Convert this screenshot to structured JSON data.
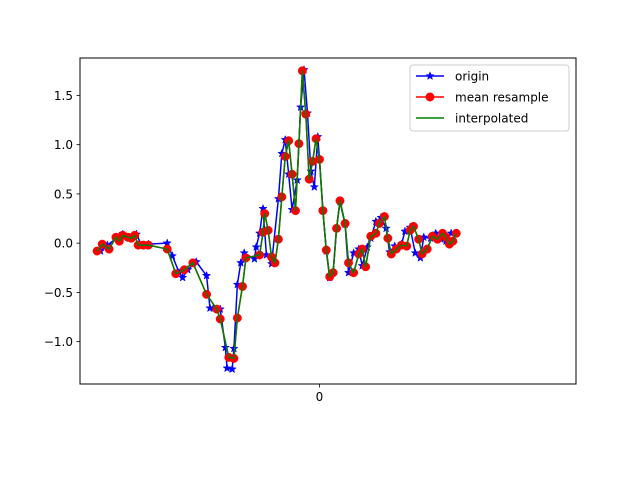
{
  "chart_data": {
    "type": "line",
    "title": "",
    "xlabel": "",
    "ylabel": "",
    "x_ticks": [
      {
        "value": 0,
        "label": "0"
      }
    ],
    "y_ticks": [
      {
        "value": 1.5,
        "label": "1.5"
      },
      {
        "value": 1.0,
        "label": "1.0"
      },
      {
        "value": 0.5,
        "label": "0.5"
      },
      {
        "value": 0.0,
        "label": "0.0"
      },
      {
        "value": -0.5,
        "label": "−0.5"
      },
      {
        "value": -1.0,
        "label": "−1.0"
      }
    ],
    "xlim": [
      -140,
      150
    ],
    "ylim": [
      -1.43,
      1.88
    ],
    "grid": false,
    "legend_position": "top-right",
    "series": [
      {
        "name": "origin",
        "color": "#0000ff",
        "marker": "star",
        "line": true,
        "points": [
          [
            -128,
            -0.08
          ],
          [
            -124,
            -0.02
          ],
          [
            -117,
            0.07
          ],
          [
            -115,
            0.09
          ],
          [
            -111,
            0.05
          ],
          [
            -107,
            0.09
          ],
          [
            -104,
            -0.02
          ],
          [
            -100,
            -0.01
          ],
          [
            -89,
            0.0
          ],
          [
            -86,
            -0.13
          ],
          [
            -82,
            -0.3
          ],
          [
            -80,
            -0.35
          ],
          [
            -77,
            -0.27
          ],
          [
            -72,
            -0.19
          ],
          [
            -66,
            -0.33
          ],
          [
            -64,
            -0.66
          ],
          [
            -62,
            -0.66
          ],
          [
            -58,
            -0.67
          ],
          [
            -55,
            -1.06
          ],
          [
            -54,
            -1.27
          ],
          [
            -51,
            -1.28
          ],
          [
            -50,
            -1.07
          ],
          [
            -48,
            -0.42
          ],
          [
            -46,
            -0.2
          ],
          [
            -44,
            -0.1
          ],
          [
            -38,
            -0.16
          ],
          [
            -37,
            -0.04
          ],
          [
            -35,
            0.1
          ],
          [
            -33,
            0.35
          ],
          [
            -31,
            -0.12
          ],
          [
            -28,
            -0.21
          ],
          [
            -24,
            0.45
          ],
          [
            -22,
            0.91
          ],
          [
            -20,
            1.05
          ],
          [
            -18,
            0.7
          ],
          [
            -16,
            0.34
          ],
          [
            -13,
            0.64
          ],
          [
            -11,
            1.38
          ],
          [
            -9,
            1.76
          ],
          [
            -7,
            1.32
          ],
          [
            -5,
            0.73
          ],
          [
            -3,
            0.57
          ],
          [
            -1,
            1.08
          ],
          [
            0,
            0.86
          ],
          [
            2,
            0.34
          ],
          [
            4,
            -0.08
          ],
          [
            6,
            -0.35
          ],
          [
            8,
            -0.3
          ],
          [
            10,
            0.15
          ],
          [
            12,
            0.42
          ],
          [
            15,
            0.19
          ],
          [
            17,
            -0.3
          ],
          [
            20,
            -0.1
          ],
          [
            23,
            -0.06
          ],
          [
            25,
            -0.23
          ],
          [
            28,
            -0.04
          ],
          [
            30,
            0.05
          ],
          [
            33,
            0.22
          ],
          [
            36,
            0.26
          ],
          [
            39,
            0.15
          ],
          [
            41,
            -0.09
          ],
          [
            44,
            -0.03
          ],
          [
            48,
            -0.01
          ],
          [
            50,
            0.12
          ],
          [
            53,
            0.16
          ],
          [
            56,
            -0.1
          ],
          [
            59,
            -0.15
          ],
          [
            61,
            0.06
          ],
          [
            65,
            0.05
          ],
          [
            68,
            0.1
          ],
          [
            71,
            0.04
          ],
          [
            74,
            0.02
          ],
          [
            77,
            0.1
          ],
          [
            80,
            0.1
          ]
        ]
      },
      {
        "name": "mean resample",
        "color": "#ff0000",
        "marker": "circle",
        "line": true,
        "points": [
          [
            -130,
            -0.08
          ],
          [
            -127,
            -0.01
          ],
          [
            -123,
            -0.06
          ],
          [
            -119,
            0.06
          ],
          [
            -117,
            0.02
          ],
          [
            -115,
            0.08
          ],
          [
            -112,
            0.06
          ],
          [
            -110,
            0.05
          ],
          [
            -108,
            0.08
          ],
          [
            -106,
            -0.02
          ],
          [
            -103,
            -0.02
          ],
          [
            -100,
            -0.02
          ],
          [
            -89,
            -0.06
          ],
          [
            -84,
            -0.31
          ],
          [
            -79,
            -0.27
          ],
          [
            -74,
            -0.2
          ],
          [
            -66,
            -0.52
          ],
          [
            -60,
            -0.67
          ],
          [
            -58,
            -0.77
          ],
          [
            -53,
            -1.16
          ],
          [
            -50,
            -1.17
          ],
          [
            -48,
            -0.76
          ],
          [
            -45,
            -0.44
          ],
          [
            -43,
            -0.15
          ],
          [
            -35,
            -0.12
          ],
          [
            -33,
            0.11
          ],
          [
            -32,
            0.3
          ],
          [
            -30,
            0.13
          ],
          [
            -28,
            -0.14
          ],
          [
            -26,
            -0.2
          ],
          [
            -24,
            0.04
          ],
          [
            -22,
            0.47
          ],
          [
            -20,
            0.88
          ],
          [
            -18,
            1.04
          ],
          [
            -16,
            0.7
          ],
          [
            -14,
            0.33
          ],
          [
            -12,
            1.01
          ],
          [
            -10,
            1.75
          ],
          [
            -8,
            1.31
          ],
          [
            -6,
            0.65
          ],
          [
            -4,
            0.83
          ],
          [
            -2,
            1.06
          ],
          [
            0,
            0.85
          ],
          [
            2,
            0.33
          ],
          [
            4,
            -0.07
          ],
          [
            6,
            -0.34
          ],
          [
            8,
            -0.3
          ],
          [
            10,
            0.15
          ],
          [
            12,
            0.43
          ],
          [
            15,
            0.2
          ],
          [
            17,
            -0.2
          ],
          [
            20,
            -0.3
          ],
          [
            23,
            -0.11
          ],
          [
            25,
            -0.06
          ],
          [
            27,
            -0.24
          ],
          [
            30,
            0.07
          ],
          [
            33,
            0.1
          ],
          [
            35,
            0.2
          ],
          [
            38,
            0.27
          ],
          [
            40,
            0.05
          ],
          [
            42,
            -0.11
          ],
          [
            45,
            -0.06
          ],
          [
            48,
            -0.02
          ],
          [
            51,
            -0.03
          ],
          [
            53,
            0.13
          ],
          [
            55,
            0.17
          ],
          [
            58,
            0.04
          ],
          [
            60,
            -0.11
          ],
          [
            63,
            -0.06
          ],
          [
            66,
            0.07
          ],
          [
            69,
            0.04
          ],
          [
            72,
            0.1
          ],
          [
            74,
            0.06
          ],
          [
            76,
            -0.01
          ],
          [
            78,
            0.02
          ],
          [
            80,
            0.1
          ]
        ]
      },
      {
        "name": "interpolated",
        "color": "#008000",
        "marker": "none",
        "line": true,
        "points": [
          [
            -130,
            -0.08
          ],
          [
            -127,
            -0.01
          ],
          [
            -123,
            -0.06
          ],
          [
            -119,
            0.06
          ],
          [
            -117,
            0.02
          ],
          [
            -115,
            0.08
          ],
          [
            -112,
            0.06
          ],
          [
            -110,
            0.05
          ],
          [
            -108,
            0.08
          ],
          [
            -106,
            -0.02
          ],
          [
            -103,
            -0.02
          ],
          [
            -100,
            -0.02
          ],
          [
            -89,
            -0.06
          ],
          [
            -84,
            -0.31
          ],
          [
            -79,
            -0.27
          ],
          [
            -74,
            -0.2
          ],
          [
            -66,
            -0.52
          ],
          [
            -60,
            -0.67
          ],
          [
            -58,
            -0.77
          ],
          [
            -53,
            -1.16
          ],
          [
            -50,
            -1.17
          ],
          [
            -48,
            -0.76
          ],
          [
            -45,
            -0.44
          ],
          [
            -43,
            -0.15
          ],
          [
            -35,
            -0.12
          ],
          [
            -33,
            0.11
          ],
          [
            -32,
            0.3
          ],
          [
            -30,
            0.13
          ],
          [
            -28,
            -0.14
          ],
          [
            -26,
            -0.2
          ],
          [
            -24,
            0.04
          ],
          [
            -22,
            0.47
          ],
          [
            -20,
            0.88
          ],
          [
            -18,
            1.04
          ],
          [
            -16,
            0.7
          ],
          [
            -14,
            0.33
          ],
          [
            -12,
            1.01
          ],
          [
            -10,
            1.75
          ],
          [
            -8,
            1.31
          ],
          [
            -6,
            0.65
          ],
          [
            -4,
            0.83
          ],
          [
            -2,
            1.06
          ],
          [
            0,
            0.85
          ],
          [
            2,
            0.33
          ],
          [
            4,
            -0.07
          ],
          [
            6,
            -0.34
          ],
          [
            8,
            -0.3
          ],
          [
            10,
            0.15
          ],
          [
            12,
            0.43
          ],
          [
            15,
            0.2
          ],
          [
            17,
            -0.2
          ],
          [
            20,
            -0.3
          ],
          [
            23,
            -0.11
          ],
          [
            25,
            -0.06
          ],
          [
            27,
            -0.24
          ],
          [
            30,
            0.07
          ],
          [
            33,
            0.1
          ],
          [
            35,
            0.2
          ],
          [
            38,
            0.27
          ],
          [
            40,
            0.05
          ],
          [
            42,
            -0.11
          ],
          [
            45,
            -0.06
          ],
          [
            48,
            -0.02
          ],
          [
            51,
            -0.03
          ],
          [
            53,
            0.13
          ],
          [
            55,
            0.17
          ],
          [
            58,
            0.04
          ],
          [
            60,
            -0.11
          ],
          [
            63,
            -0.06
          ],
          [
            66,
            0.07
          ],
          [
            69,
            0.04
          ],
          [
            72,
            0.1
          ],
          [
            74,
            0.06
          ],
          [
            76,
            -0.01
          ],
          [
            78,
            0.02
          ],
          [
            80,
            0.1
          ]
        ]
      }
    ]
  }
}
